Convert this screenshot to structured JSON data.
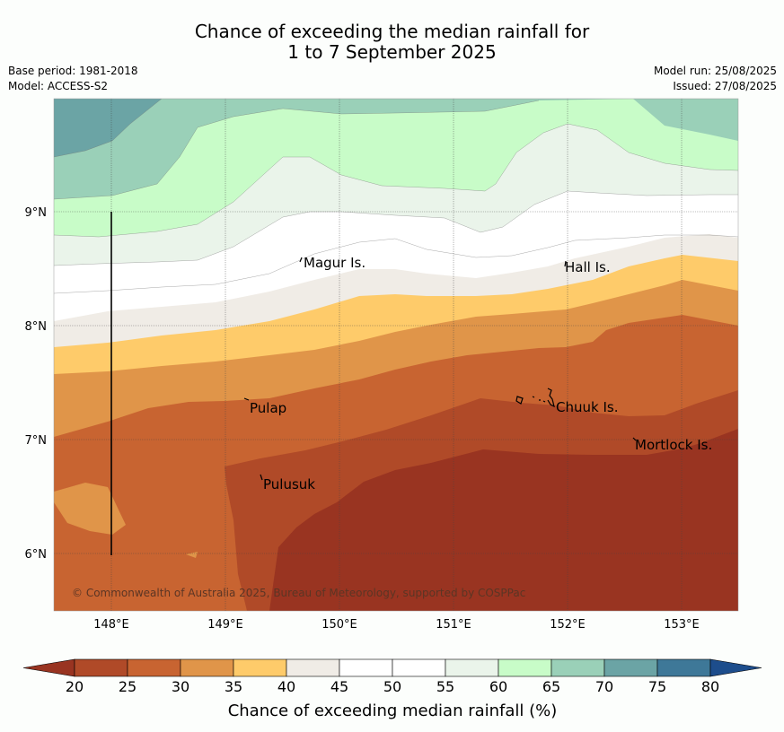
{
  "title": {
    "line1": "Chance of exceeding the median rainfall for",
    "line2": "1 to 7 September 2025"
  },
  "meta": {
    "base_period": "Base period: 1981-2018",
    "model": "Model: ACCESS-S2",
    "model_run": "Model run: 25/08/2025",
    "issued": "Issued: 27/08/2025"
  },
  "map": {
    "lat_labels": [
      "9°N",
      "8°N",
      "7°N",
      "6°N"
    ],
    "lon_labels": [
      "148°E",
      "149°E",
      "150°E",
      "151°E",
      "152°E",
      "153°E"
    ],
    "places": [
      {
        "name": "Magur Is."
      },
      {
        "name": "Hall Is."
      },
      {
        "name": "Pulap"
      },
      {
        "name": "Chuuk Is."
      },
      {
        "name": "Mortlock Is."
      },
      {
        "name": "Pulusuk"
      }
    ],
    "credit": "© Commonwealth of Australia 2025, Bureau of Meteorology, supported by COSPPac"
  },
  "colorbar": {
    "ticks": [
      "20",
      "25",
      "30",
      "35",
      "40",
      "45",
      "50",
      "55",
      "60",
      "65",
      "70",
      "75",
      "80"
    ],
    "colors": [
      "#993421",
      "#b04a28",
      "#c86431",
      "#e09549",
      "#fecb6a",
      "#f0ece6",
      "#ffffff",
      "#ffffff",
      "#eaf4ea",
      "#c8fcc8",
      "#9ad0b8",
      "#6ba4a5",
      "#3e7898",
      "#1d4d8c"
    ],
    "label": "Chance of exceeding median rainfall (%)"
  }
}
